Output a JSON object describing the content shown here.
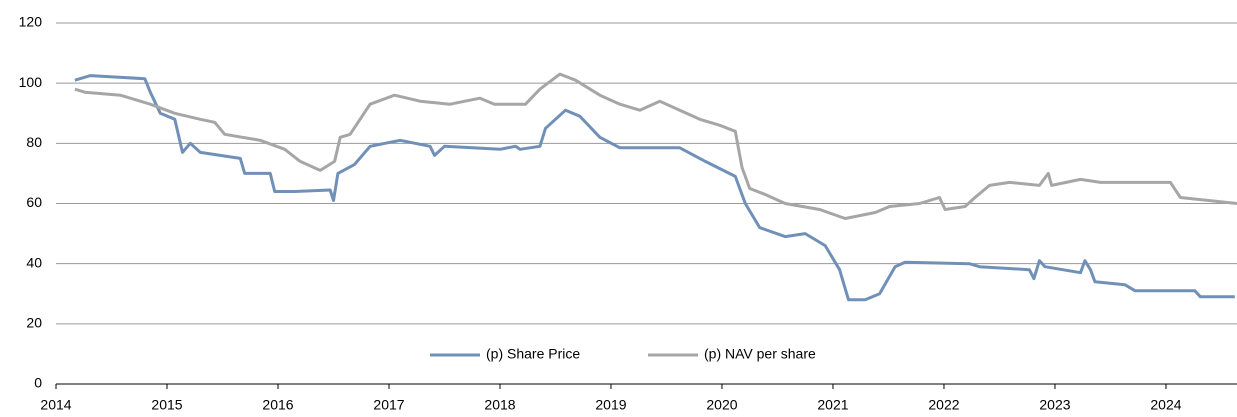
{
  "chart_data": {
    "type": "line",
    "xlim": [
      2014,
      2024.64
    ],
    "xticks": [
      2014,
      2015,
      2016,
      2017,
      2018,
      2019,
      2020,
      2021,
      2022,
      2023,
      2024
    ],
    "ylim": [
      0,
      120
    ],
    "yticks": [
      0,
      20,
      40,
      60,
      80,
      100,
      120
    ],
    "grid": true,
    "legend": "bottom",
    "series": [
      {
        "name": "(p) Share Price",
        "color": "#7090b8",
        "x": [
          2014.17,
          2014.31,
          2014.8,
          2014.85,
          2014.94,
          2015.07,
          2015.14,
          2015.21,
          2015.3,
          2015.66,
          2015.7,
          2015.93,
          2015.97,
          2016.15,
          2016.47,
          2016.5,
          2016.54,
          2016.69,
          2016.83,
          2017.1,
          2017.37,
          2017.41,
          2017.5,
          2018.0,
          2018.14,
          2018.18,
          2018.36,
          2018.41,
          2018.59,
          2018.72,
          2018.9,
          2019.08,
          2019.62,
          2019.85,
          2020.12,
          2020.21,
          2020.34,
          2020.57,
          2020.75,
          2020.93,
          2021.06,
          2021.14,
          2021.29,
          2021.42,
          2021.56,
          2021.65,
          2022.23,
          2022.32,
          2022.77,
          2022.81,
          2022.86,
          2022.91,
          2023.23,
          2023.27,
          2023.32,
          2023.36,
          2023.63,
          2023.72,
          2024.26,
          2024.31,
          2024.62
        ],
        "values": [
          101,
          102.5,
          101.5,
          97,
          90,
          88,
          77,
          80,
          77,
          75,
          70,
          70,
          64,
          64,
          64.5,
          61,
          70,
          73,
          79,
          81,
          79,
          76,
          79,
          78,
          79,
          78,
          79,
          85,
          91,
          89,
          82,
          78.5,
          78.5,
          74,
          69,
          60,
          52,
          49,
          50,
          46,
          38,
          28,
          28,
          30,
          39,
          40.5,
          40,
          39,
          38,
          35,
          41,
          39,
          37,
          41,
          38,
          34,
          33,
          31,
          31,
          29,
          29
        ]
      },
      {
        "name": "(p) NAV per share",
        "color": "#a6a6a6",
        "x": [
          2014.17,
          2014.26,
          2014.58,
          2014.85,
          2015.07,
          2015.3,
          2015.43,
          2015.52,
          2015.84,
          2016.06,
          2016.2,
          2016.38,
          2016.51,
          2016.56,
          2016.65,
          2016.83,
          2017.05,
          2017.28,
          2017.55,
          2017.82,
          2017.95,
          2018.23,
          2018.36,
          2018.54,
          2018.68,
          2018.9,
          2019.08,
          2019.26,
          2019.44,
          2019.62,
          2019.8,
          2019.98,
          2020.12,
          2020.18,
          2020.25,
          2020.39,
          2020.57,
          2020.88,
          2021.11,
          2021.38,
          2021.51,
          2021.78,
          2021.96,
          2022.01,
          2022.19,
          2022.28,
          2022.41,
          2022.59,
          2022.86,
          2022.94,
          2022.97,
          2023.23,
          2023.41,
          2024.04,
          2024.13,
          2024.64
        ],
        "values": [
          98,
          97,
          96,
          93,
          90,
          88,
          87,
          83,
          81,
          78,
          74,
          71,
          74,
          82,
          83,
          93,
          96,
          94,
          93,
          95,
          93,
          93,
          98,
          103,
          101,
          96,
          93,
          91,
          94,
          91,
          88,
          86,
          84,
          72,
          65,
          63,
          60,
          58,
          55,
          57,
          59,
          60,
          62,
          58,
          59,
          62,
          66,
          67,
          66,
          70,
          66,
          68,
          67,
          67,
          62,
          60
        ]
      }
    ]
  }
}
